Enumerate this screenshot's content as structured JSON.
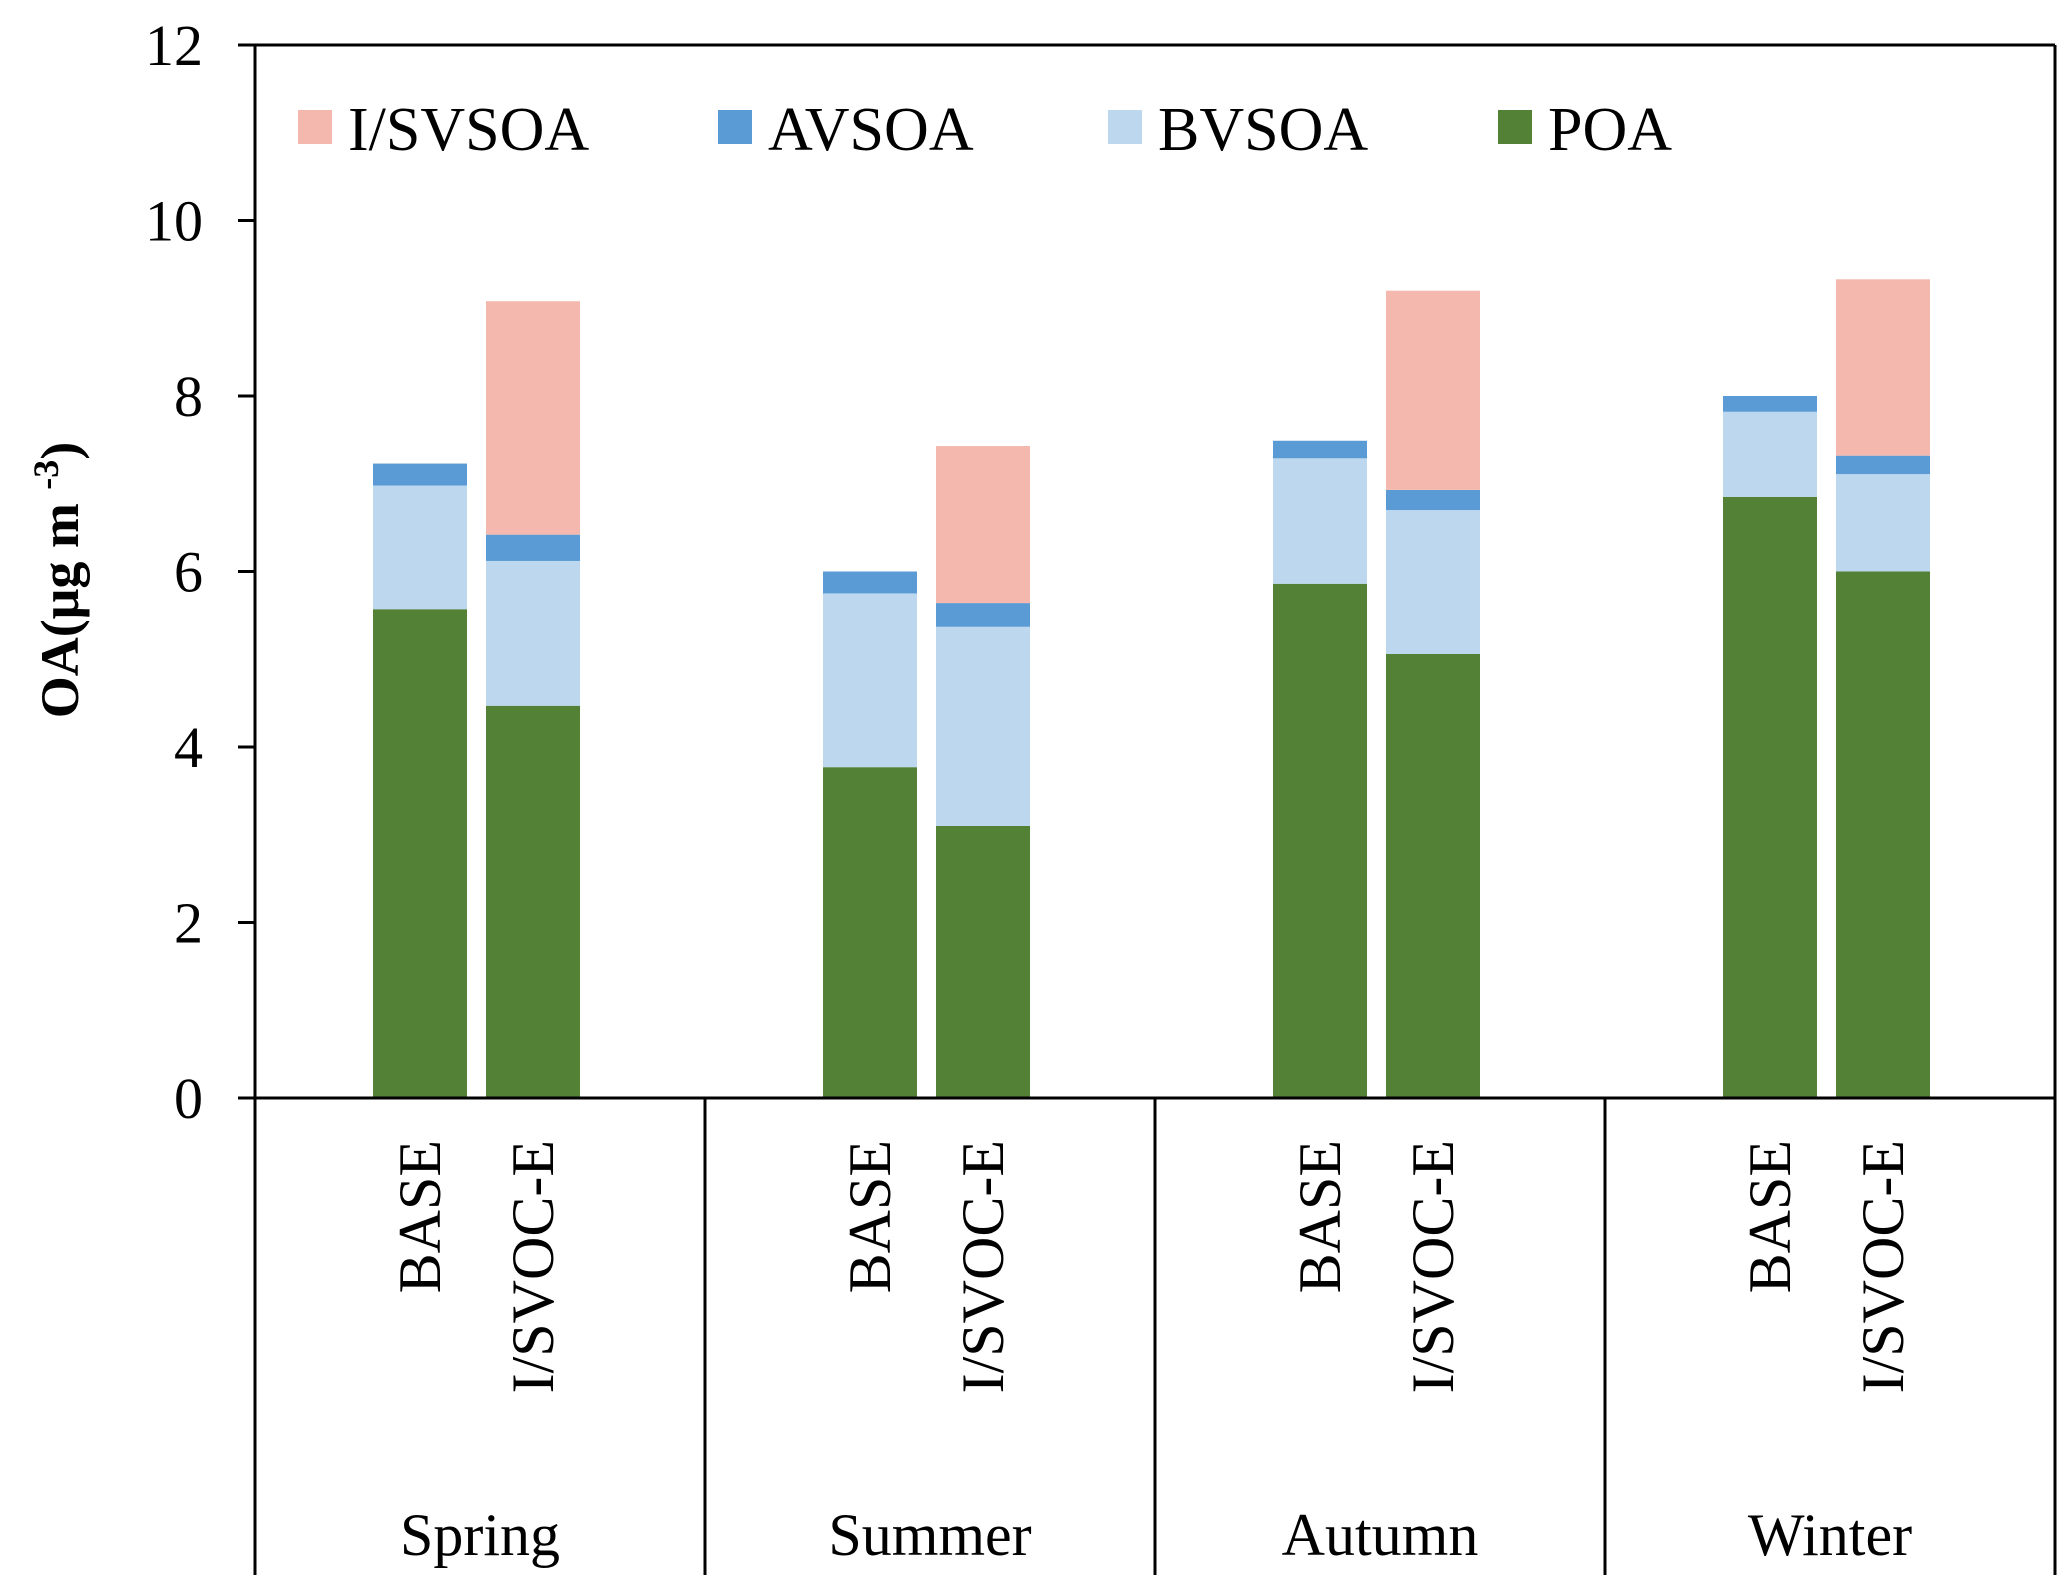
{
  "chart_data": {
    "type": "bar",
    "stacked": true,
    "groups": [
      "Spring",
      "Summer",
      "Autumn",
      "Winter"
    ],
    "scenarios": [
      "BASE",
      "I/SVOC-E"
    ],
    "ylabel": "OA(μg m",
    "ylabel_superscript": "-3",
    "ylabel_suffix": ")",
    "ylim": [
      0,
      12
    ],
    "yticks": [
      "0",
      "2",
      "4",
      "6",
      "8",
      "10",
      "12"
    ],
    "legend_position": "top-left, horizontal, inside",
    "grid": false,
    "series": [
      {
        "name": "POA",
        "color": "#538135",
        "values": [
          [
            5.57,
            4.47
          ],
          [
            3.77,
            3.1
          ],
          [
            5.86,
            5.06
          ],
          [
            6.85,
            6.0
          ]
        ]
      },
      {
        "name": "BVSOA",
        "color": "#bdd7ee",
        "values": [
          [
            1.41,
            1.65
          ],
          [
            1.98,
            2.27
          ],
          [
            1.43,
            1.64
          ],
          [
            0.97,
            1.11
          ]
        ]
      },
      {
        "name": "AVSOA",
        "color": "#5b9bd5",
        "values": [
          [
            0.25,
            0.3
          ],
          [
            0.25,
            0.27
          ],
          [
            0.2,
            0.23
          ],
          [
            0.18,
            0.21
          ]
        ]
      },
      {
        "name": "I/SVSOA",
        "color": "#f4b8ae",
        "values": [
          [
            0.0,
            2.66
          ],
          [
            0.0,
            1.79
          ],
          [
            0.0,
            2.27
          ],
          [
            0.0,
            2.01
          ]
        ]
      }
    ],
    "legend_order": [
      "I/SVSOA",
      "AVSOA",
      "BVSOA",
      "POA"
    ]
  }
}
